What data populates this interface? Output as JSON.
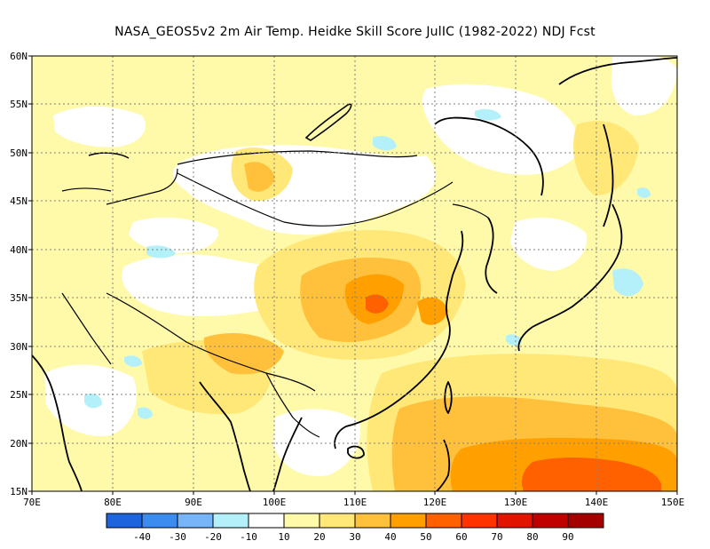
{
  "title": "NASA_GEOS5v2  2m Air Temp. Heidke Skill Score JulIC (1982-2022) NDJ Fcst",
  "lat_ticks": [
    "60N",
    "55N",
    "50N",
    "45N",
    "40N",
    "35N",
    "30N",
    "25N",
    "20N",
    "15N"
  ],
  "lon_ticks": [
    "70E",
    "80E",
    "90E",
    "100E",
    "110E",
    "120E",
    "130E",
    "140E",
    "150E"
  ],
  "colorbar": {
    "labels": [
      "-40",
      "-30",
      "-20",
      "-10",
      "10",
      "20",
      "30",
      "40",
      "50",
      "60",
      "70",
      "80",
      "90"
    ],
    "colors": [
      "#1e64dc",
      "#3c8cf0",
      "#78b4f8",
      "#b4f0fa",
      "#ffffff",
      "#fffaaa",
      "#ffe878",
      "#ffc03c",
      "#ffa000",
      "#ff6000",
      "#ff3200",
      "#e11400",
      "#c00000",
      "#a50000"
    ]
  },
  "colors": {
    "coast": "#000000",
    "grid": "#7f7f7f",
    "pale_yellow": "#fffaaa",
    "yellow": "#ffe878",
    "light_orange": "#ffc03c",
    "orange": "#ffa000",
    "dark_orange": "#ff6000",
    "light_blue": "#b4f0fa"
  }
}
